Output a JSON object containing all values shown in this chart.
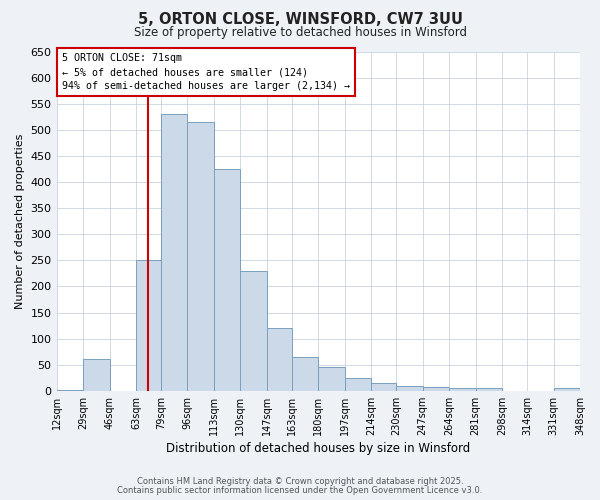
{
  "title": "5, ORTON CLOSE, WINSFORD, CW7 3UU",
  "subtitle": "Size of property relative to detached houses in Winsford",
  "xlabel": "Distribution of detached houses by size in Winsford",
  "ylabel": "Number of detached properties",
  "bar_labels": [
    "12sqm",
    "29sqm",
    "46sqm",
    "63sqm",
    "79sqm",
    "96sqm",
    "113sqm",
    "130sqm",
    "147sqm",
    "163sqm",
    "180sqm",
    "197sqm",
    "214sqm",
    "230sqm",
    "247sqm",
    "264sqm",
    "281sqm",
    "298sqm",
    "314sqm",
    "331sqm",
    "348sqm"
  ],
  "bar_values": [
    2,
    60,
    0,
    250,
    530,
    515,
    425,
    230,
    120,
    65,
    45,
    25,
    15,
    10,
    8,
    5,
    5,
    0,
    0,
    5
  ],
  "bin_edges": [
    12,
    29,
    46,
    63,
    79,
    96,
    113,
    130,
    147,
    163,
    180,
    197,
    214,
    230,
    247,
    264,
    281,
    298,
    314,
    331,
    348
  ],
  "bar_color": "#ccd9e8",
  "bar_edge_color": "#7aa0be",
  "property_line_x": 71,
  "annotation_title": "5 ORTON CLOSE: 71sqm",
  "annotation_line1": "← 5% of detached houses are smaller (124)",
  "annotation_line2": "94% of semi-detached houses are larger (2,134) →",
  "annotation_box_facecolor": "#ffffff",
  "annotation_box_edgecolor": "#cc0000",
  "vline_color": "#cc0000",
  "ylim": [
    0,
    650
  ],
  "yticks": [
    0,
    50,
    100,
    150,
    200,
    250,
    300,
    350,
    400,
    450,
    500,
    550,
    600,
    650
  ],
  "footer1": "Contains HM Land Registry data © Crown copyright and database right 2025.",
  "footer2": "Contains public sector information licensed under the Open Government Licence v3.0.",
  "bg_color": "#eef2f7",
  "plot_bg_color": "#ffffff",
  "grid_color": "#c8d4e0"
}
